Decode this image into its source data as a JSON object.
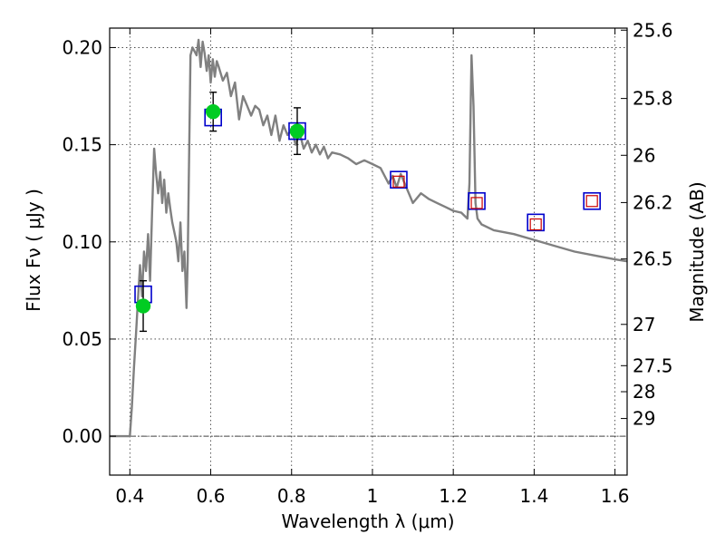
{
  "chart_data": {
    "type": "line",
    "xlabel": "Wavelength  λ (μm)",
    "ylabel": "Flux  Fν  ( μJy )",
    "y2label": "Magnitude (AB)",
    "xlim": [
      0.35,
      1.63
    ],
    "ylim": [
      -0.02,
      0.21
    ],
    "grid": true,
    "x_ticks": [
      {
        "value": 0.4,
        "label": "0.4"
      },
      {
        "value": 0.6,
        "label": "0.6"
      },
      {
        "value": 0.8,
        "label": "0.8"
      },
      {
        "value": 1.0,
        "label": "1"
      },
      {
        "value": 1.2,
        "label": "1.2"
      },
      {
        "value": 1.4,
        "label": "1.4"
      },
      {
        "value": 1.6,
        "label": "1.6"
      }
    ],
    "y_ticks": [
      {
        "value": 0.0,
        "label": "0.00"
      },
      {
        "value": 0.05,
        "label": "0.05"
      },
      {
        "value": 0.1,
        "label": "0.10"
      },
      {
        "value": 0.15,
        "label": "0.15"
      },
      {
        "value": 0.2,
        "label": "0.20"
      }
    ],
    "mag_ticks": [
      {
        "value": 25.6,
        "label": "25.6"
      },
      {
        "value": 25.8,
        "label": "25.8"
      },
      {
        "value": 26.0,
        "label": "26"
      },
      {
        "value": 26.2,
        "label": "26.2"
      },
      {
        "value": 26.5,
        "label": "26.5"
      },
      {
        "value": 27.0,
        "label": "27"
      },
      {
        "value": 27.5,
        "label": "27.5"
      },
      {
        "value": 28.0,
        "label": "28"
      },
      {
        "value": 29.0,
        "label": "29"
      }
    ],
    "series": [
      {
        "type": "line",
        "color": "#808080",
        "x": [
          0.35,
          0.4,
          0.405,
          0.41,
          0.415,
          0.42,
          0.425,
          0.43,
          0.435,
          0.44,
          0.445,
          0.45,
          0.455,
          0.46,
          0.465,
          0.47,
          0.475,
          0.48,
          0.485,
          0.49,
          0.495,
          0.5,
          0.505,
          0.51,
          0.515,
          0.52,
          0.525,
          0.53,
          0.535,
          0.54,
          0.543,
          0.55,
          0.555,
          0.56,
          0.565,
          0.57,
          0.575,
          0.58,
          0.585,
          0.59,
          0.595,
          0.6,
          0.605,
          0.61,
          0.615,
          0.62,
          0.63,
          0.64,
          0.65,
          0.66,
          0.67,
          0.68,
          0.69,
          0.7,
          0.71,
          0.72,
          0.73,
          0.74,
          0.75,
          0.76,
          0.77,
          0.78,
          0.79,
          0.8,
          0.81,
          0.82,
          0.83,
          0.84,
          0.85,
          0.86,
          0.87,
          0.88,
          0.89,
          0.9,
          0.92,
          0.94,
          0.96,
          0.98,
          1.0,
          1.02,
          1.04,
          1.05,
          1.06,
          1.07,
          1.08,
          1.09,
          1.1,
          1.12,
          1.14,
          1.16,
          1.18,
          1.2,
          1.22,
          1.235,
          1.24,
          1.245,
          1.25,
          1.255,
          1.26,
          1.27,
          1.3,
          1.35,
          1.4,
          1.45,
          1.5,
          1.55,
          1.6,
          1.63
        ],
        "values": [
          0.0,
          0.0,
          0.015,
          0.035,
          0.052,
          0.07,
          0.088,
          0.072,
          0.095,
          0.085,
          0.104,
          0.08,
          0.115,
          0.148,
          0.135,
          0.125,
          0.136,
          0.12,
          0.132,
          0.115,
          0.125,
          0.117,
          0.11,
          0.105,
          0.1,
          0.09,
          0.11,
          0.085,
          0.095,
          0.066,
          0.09,
          0.196,
          0.2,
          0.198,
          0.196,
          0.204,
          0.19,
          0.203,
          0.197,
          0.188,
          0.196,
          0.182,
          0.194,
          0.185,
          0.193,
          0.19,
          0.183,
          0.187,
          0.175,
          0.182,
          0.163,
          0.175,
          0.17,
          0.165,
          0.17,
          0.168,
          0.16,
          0.165,
          0.155,
          0.165,
          0.152,
          0.16,
          0.155,
          0.158,
          0.15,
          0.156,
          0.148,
          0.152,
          0.146,
          0.15,
          0.145,
          0.149,
          0.143,
          0.146,
          0.145,
          0.143,
          0.14,
          0.142,
          0.14,
          0.138,
          0.13,
          0.134,
          0.128,
          0.135,
          0.13,
          0.125,
          0.12,
          0.125,
          0.122,
          0.12,
          0.118,
          0.116,
          0.115,
          0.112,
          0.13,
          0.196,
          0.17,
          0.12,
          0.112,
          0.109,
          0.106,
          0.104,
          0.101,
          0.098,
          0.095,
          0.093,
          0.091,
          0.09
        ]
      },
      {
        "type": "squares",
        "color": "#0000cc",
        "x": [
          0.433,
          0.606,
          0.814,
          1.065,
          1.258,
          1.404,
          1.543
        ],
        "values": [
          0.073,
          0.164,
          0.157,
          0.132,
          0.121,
          0.11,
          0.121
        ]
      },
      {
        "type": "small_squares",
        "color": "#cc0000",
        "x": [
          1.065,
          1.258,
          1.404,
          1.543
        ],
        "values": [
          0.131,
          0.12,
          0.109,
          0.121
        ]
      },
      {
        "type": "points_with_errorbars",
        "color": "#00cc22",
        "x": [
          0.433,
          0.606,
          0.814
        ],
        "values": [
          0.067,
          0.167,
          0.157
        ],
        "err": [
          0.013,
          0.01,
          0.012
        ]
      }
    ]
  }
}
